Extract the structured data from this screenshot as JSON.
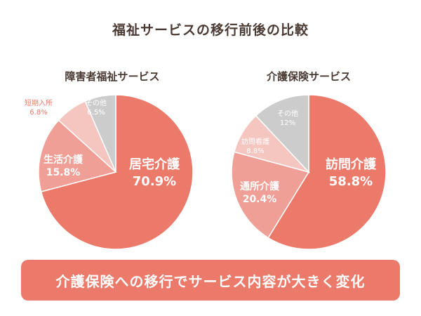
{
  "page_title": "福祉サービスの移行前後の比較",
  "banner": {
    "text": "介護保険への移行でサービス内容が大きく変化"
  },
  "colors": {
    "main": "#ec7a6a",
    "secondary": "#ef9f95",
    "tertiary": "#f5c6c0",
    "other": "#cccccc",
    "banner": "#ec7a6a"
  },
  "chart_data": [
    {
      "type": "pie",
      "title": "障害者福祉サービス",
      "slices": [
        {
          "label": "居宅介護",
          "value": 70.9,
          "display": "70.9%",
          "color": "#ec7a6a"
        },
        {
          "label": "生活介護",
          "value": 15.8,
          "display": "15.8%",
          "color": "#ef9f95"
        },
        {
          "label": "短期入所",
          "value": 6.8,
          "display": "6.8%",
          "color": "#f5c6c0"
        },
        {
          "label": "その他",
          "value": 6.5,
          "display": "6.5%",
          "color": "#cccccc"
        }
      ]
    },
    {
      "type": "pie",
      "title": "介護保険サービス",
      "slices": [
        {
          "label": "訪問介護",
          "value": 58.8,
          "display": "58.8%",
          "color": "#ec7a6a"
        },
        {
          "label": "通所介護",
          "value": 20.4,
          "display": "20.4%",
          "color": "#ef9f95"
        },
        {
          "label": "訪問看護",
          "value": 8.8,
          "display": "8.8%",
          "color": "#f5c6c0"
        },
        {
          "label": "その他",
          "value": 12,
          "display": "12%",
          "color": "#cccccc"
        }
      ]
    }
  ]
}
